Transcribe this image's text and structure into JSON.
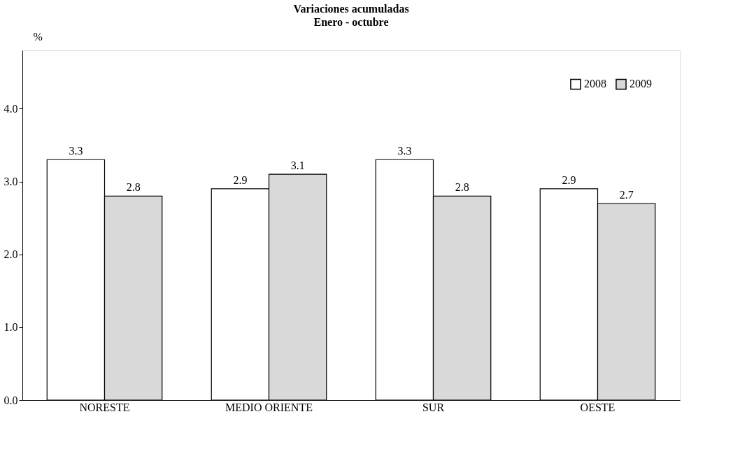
{
  "chart_data": {
    "type": "bar",
    "title": "Variaciones acumuladas",
    "subtitle": "Enero - octubre",
    "ylabel": "%",
    "categories": [
      "NORESTE",
      "MEDIO ORIENTE",
      "SUR",
      "OESTE"
    ],
    "series": [
      {
        "name": "2008",
        "color": "#ffffff",
        "values": [
          3.3,
          2.9,
          3.3,
          2.9
        ]
      },
      {
        "name": "2009",
        "color": "#d9d9d9",
        "values": [
          2.8,
          3.1,
          2.8,
          2.7
        ]
      }
    ],
    "ylim": [
      0,
      4.8
    ],
    "yticks": [
      {
        "value": 0,
        "label": "0.0"
      },
      {
        "value": 1,
        "label": "1.0"
      },
      {
        "value": 2,
        "label": "2.0"
      },
      {
        "value": 3,
        "label": "3.0"
      },
      {
        "value": 4,
        "label": "4.0"
      }
    ],
    "data_labels": true,
    "legend": "top right",
    "grid": false
  }
}
